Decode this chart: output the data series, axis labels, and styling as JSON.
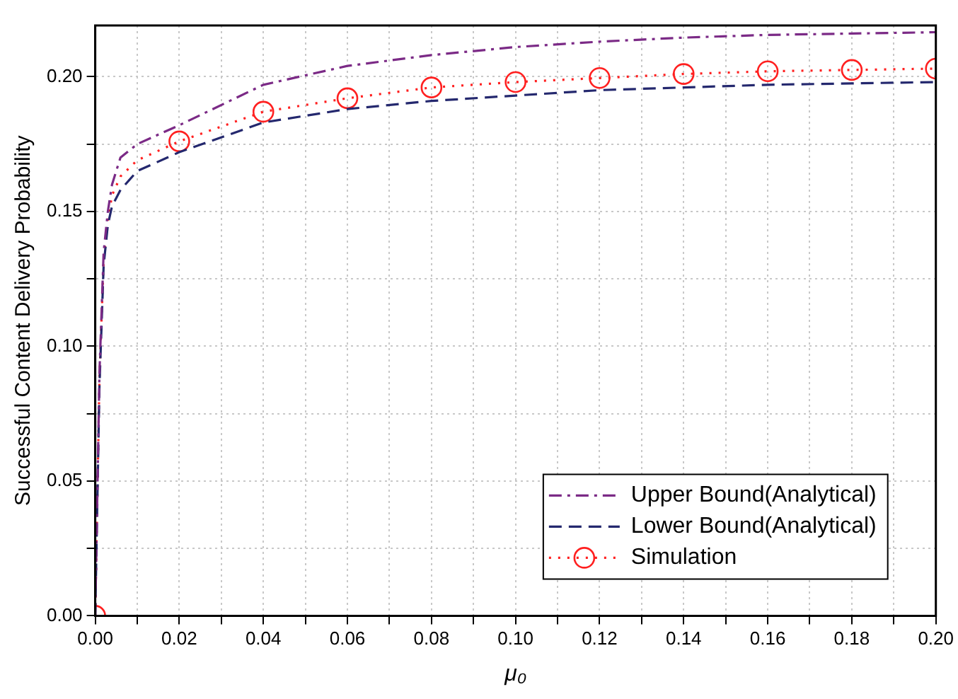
{
  "chart_data": {
    "type": "line",
    "xlabel": "μ₀",
    "ylabel": "Successful Content Delivery Probability",
    "xlim": [
      0,
      0.2
    ],
    "ylim": [
      0,
      0.219
    ],
    "xticks": [
      {
        "value": 0,
        "label": "0.00"
      },
      {
        "value": 0.01,
        "label": null
      },
      {
        "value": 0.02,
        "label": "0.02"
      },
      {
        "value": 0.03,
        "label": null
      },
      {
        "value": 0.04,
        "label": "0.04"
      },
      {
        "value": 0.05,
        "label": null
      },
      {
        "value": 0.06,
        "label": "0.06"
      },
      {
        "value": 0.07,
        "label": null
      },
      {
        "value": 0.08,
        "label": "0.08"
      },
      {
        "value": 0.09,
        "label": null
      },
      {
        "value": 0.1,
        "label": "0.10"
      },
      {
        "value": 0.11,
        "label": null
      },
      {
        "value": 0.12,
        "label": "0.12"
      },
      {
        "value": 0.13,
        "label": null
      },
      {
        "value": 0.14,
        "label": "0.14"
      },
      {
        "value": 0.15,
        "label": null
      },
      {
        "value": 0.16,
        "label": "0.16"
      },
      {
        "value": 0.17,
        "label": null
      },
      {
        "value": 0.18,
        "label": "0.18"
      },
      {
        "value": 0.19,
        "label": null
      },
      {
        "value": 0.2,
        "label": "0.20"
      }
    ],
    "yticks": [
      {
        "value": 0,
        "label": "0.00"
      },
      {
        "value": 0.025,
        "label": null
      },
      {
        "value": 0.05,
        "label": "0.05"
      },
      {
        "value": 0.075,
        "label": null
      },
      {
        "value": 0.1,
        "label": "0.10"
      },
      {
        "value": 0.125,
        "label": null
      },
      {
        "value": 0.15,
        "label": "0.15"
      },
      {
        "value": 0.175,
        "label": null
      },
      {
        "value": 0.2,
        "label": "0.20"
      }
    ],
    "grid": true,
    "legend": "bottom right",
    "series": [
      {
        "name": "Upper Bound(Analytical)",
        "color": "#7b2a86",
        "line_style": "dashdot",
        "marker": "none",
        "x": [
          0,
          0.001,
          0.002,
          0.003,
          0.004,
          0.006,
          0.01,
          0.02,
          0.04,
          0.06,
          0.08,
          0.1,
          0.12,
          0.14,
          0.16,
          0.18,
          0.2
        ],
        "values": [
          0,
          0.09,
          0.135,
          0.15,
          0.16,
          0.17,
          0.175,
          0.182,
          0.197,
          0.204,
          0.208,
          0.211,
          0.213,
          0.2145,
          0.2155,
          0.216,
          0.2165
        ]
      },
      {
        "name": "Lower Bound(Analytical)",
        "color": "#24286e",
        "line_style": "dashed",
        "marker": "none",
        "x": [
          0,
          0.001,
          0.002,
          0.003,
          0.004,
          0.006,
          0.01,
          0.02,
          0.04,
          0.06,
          0.08,
          0.1,
          0.12,
          0.14,
          0.16,
          0.18,
          0.2
        ],
        "values": [
          0,
          0.085,
          0.13,
          0.145,
          0.152,
          0.158,
          0.165,
          0.172,
          0.183,
          0.188,
          0.191,
          0.193,
          0.195,
          0.196,
          0.197,
          0.1975,
          0.198
        ]
      },
      {
        "color": "#ff2020",
        "line_style": "dotted",
        "marker": "none",
        "x": [
          0,
          0.001,
          0.002,
          0.003,
          0.004,
          0.006,
          0.01,
          0.02,
          0.04,
          0.06,
          0.08,
          0.1,
          0.12,
          0.14,
          0.16,
          0.18,
          0.2
        ],
        "values": [
          0,
          0.088,
          0.132,
          0.147,
          0.156,
          0.163,
          0.169,
          0.176,
          0.187,
          0.192,
          0.196,
          0.198,
          0.1995,
          0.201,
          0.202,
          0.2025,
          0.203
        ]
      },
      {
        "name": "Simulation",
        "type": "scatter",
        "color": "#ff2020",
        "line_style": "dotted",
        "marker": "circle",
        "x": [
          0,
          0.02,
          0.04,
          0.06,
          0.08,
          0.1,
          0.12,
          0.14,
          0.16,
          0.18,
          0.2
        ],
        "values": [
          0,
          0.176,
          0.187,
          0.192,
          0.196,
          0.198,
          0.1995,
          0.201,
          0.202,
          0.2025,
          0.203
        ]
      }
    ]
  }
}
